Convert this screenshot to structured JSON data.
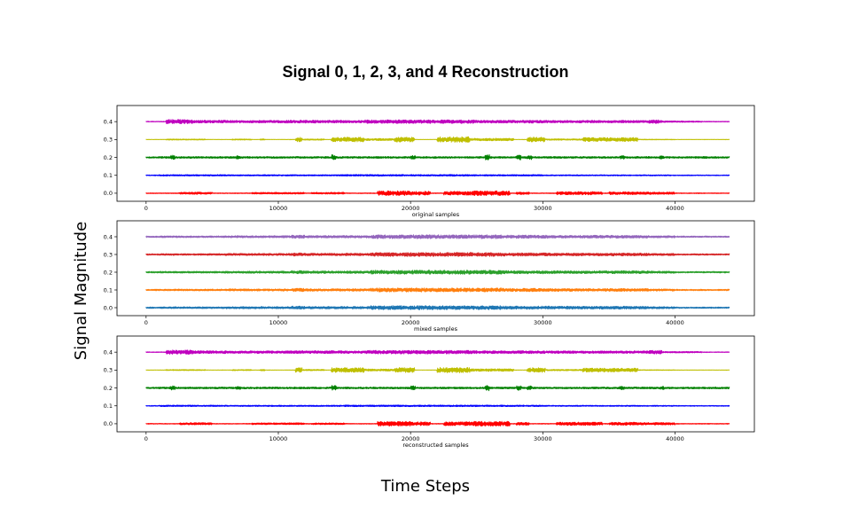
{
  "figure": {
    "title": "Signal 0, 1, 2, 3, and 4 Reconstruction",
    "ylabel": "Signal Magnitude",
    "xlabel": "Time Steps"
  },
  "chart_data": [
    {
      "type": "line",
      "xlabel": "original samples",
      "xlim": [
        -2200,
        46000
      ],
      "ylim": [
        -0.045,
        0.49
      ],
      "xticks": [
        0,
        10000,
        20000,
        30000,
        40000
      ],
      "yticks": [
        0.0,
        0.1,
        0.2,
        0.3,
        0.4
      ],
      "series": [
        {
          "offset": 0.0,
          "color": "#ff0000",
          "profile": "red"
        },
        {
          "offset": 0.1,
          "color": "#0000ff",
          "profile": "blue"
        },
        {
          "offset": 0.2,
          "color": "#008000",
          "profile": "green"
        },
        {
          "offset": 0.3,
          "color": "#bfbf00",
          "profile": "yellow"
        },
        {
          "offset": 0.4,
          "color": "#bf00bf",
          "profile": "magenta"
        }
      ]
    },
    {
      "type": "line",
      "xlabel": "mixed samples",
      "xlim": [
        -2200,
        46000
      ],
      "ylim": [
        -0.045,
        0.49
      ],
      "xticks": [
        0,
        10000,
        20000,
        30000,
        40000
      ],
      "yticks": [
        0.0,
        0.1,
        0.2,
        0.3,
        0.4
      ],
      "series": [
        {
          "offset": 0.0,
          "color": "#1f77b4",
          "profile": "mix"
        },
        {
          "offset": 0.1,
          "color": "#ff7f0e",
          "profile": "mix"
        },
        {
          "offset": 0.2,
          "color": "#2ca02c",
          "profile": "mix"
        },
        {
          "offset": 0.3,
          "color": "#d62728",
          "profile": "mix"
        },
        {
          "offset": 0.4,
          "color": "#9467bd",
          "profile": "mix"
        }
      ]
    },
    {
      "type": "line",
      "xlabel": "reconstructed samples",
      "xlim": [
        -2200,
        46000
      ],
      "ylim": [
        -0.045,
        0.49
      ],
      "xticks": [
        0,
        10000,
        20000,
        30000,
        40000
      ],
      "yticks": [
        0.0,
        0.1,
        0.2,
        0.3,
        0.4
      ],
      "series": [
        {
          "offset": 0.0,
          "color": "#ff0000",
          "profile": "red"
        },
        {
          "offset": 0.1,
          "color": "#0000ff",
          "profile": "blue"
        },
        {
          "offset": 0.2,
          "color": "#008000",
          "profile": "green"
        },
        {
          "offset": 0.3,
          "color": "#bfbf00",
          "profile": "yellow"
        },
        {
          "offset": 0.4,
          "color": "#bf00bf",
          "profile": "magenta"
        }
      ]
    }
  ]
}
